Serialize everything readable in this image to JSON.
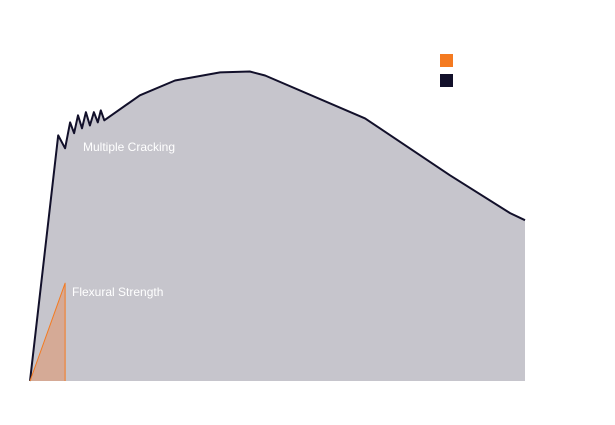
{
  "chart_data": {
    "type": "area",
    "xlim": [
      0,
      100
    ],
    "ylim": [
      0,
      105
    ],
    "legend": "top-right",
    "series": [
      {
        "color": "#12102a",
        "fill": "#c6c5cc",
        "x": [
          0,
          5.7,
          7.1,
          8.1,
          8.9,
          9.7,
          10.5,
          11.3,
          12.1,
          12.9,
          13.7,
          14.3,
          15.0,
          22.2,
          29.3,
          38.4,
          44.4,
          47.5,
          67.7,
          84.8,
          97.0,
          100
        ],
        "values": [
          0,
          79.6,
          75.4,
          83.8,
          80.3,
          86.1,
          81.9,
          87.1,
          82.8,
          87.1,
          83.8,
          87.7,
          84.5,
          92.6,
          97.4,
          100,
          100.3,
          99.0,
          85.1,
          66.7,
          54.4,
          52.1
        ]
      },
      {
        "color": "#f47a20",
        "fill": "#d7a58c",
        "x": [
          0,
          7.1,
          7.1
        ],
        "values": [
          0,
          31.7,
          0
        ]
      }
    ],
    "annotations": [
      "Multiple Cracking",
      "Flexural Strength"
    ]
  }
}
